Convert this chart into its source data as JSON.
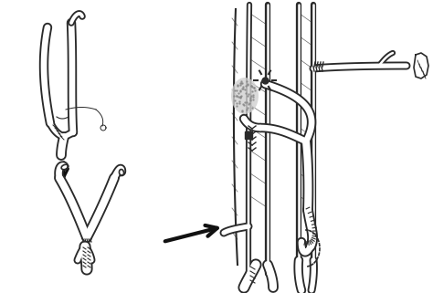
{
  "background_color": "#ffffff",
  "line_color": "#2a2a2a",
  "arrow_color": "#111111",
  "figure_width": 4.74,
  "figure_height": 3.21,
  "dpi": 100
}
